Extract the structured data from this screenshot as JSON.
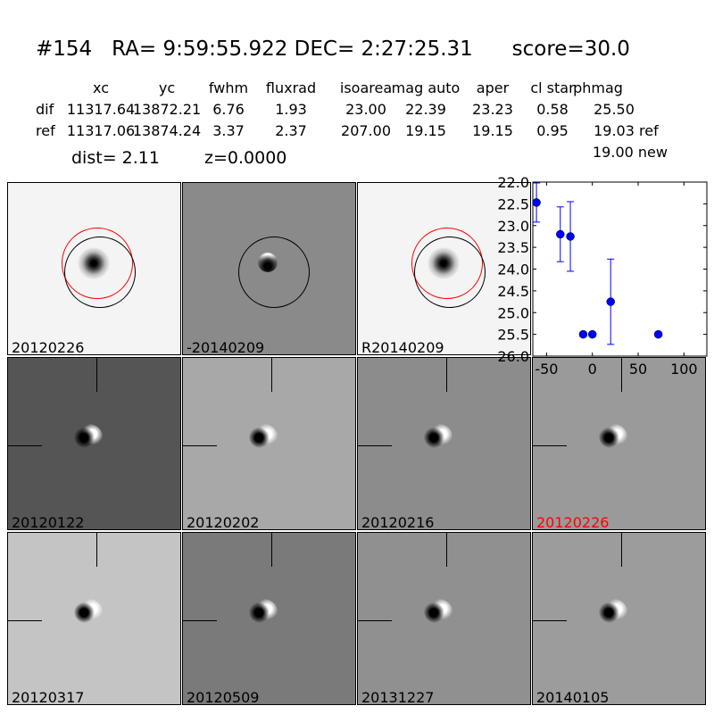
{
  "title": "#154   RA= 9:59:55.922 DEC= 2:27:25.31      score=30.0",
  "table": {
    "headers": [
      "xc",
      "yc",
      "fwhm",
      "fluxrad",
      "isoarea",
      "mag auto",
      "aper",
      "cl star",
      "phmag"
    ],
    "rows": [
      {
        "label": "dif",
        "values": [
          "11317.64",
          "13872.21",
          "6.76",
          "1.93",
          "23.00",
          "22.39",
          "23.23",
          "0.58",
          "25.50"
        ],
        "suffix": ""
      },
      {
        "label": "ref",
        "values": [
          "11317.06",
          "13874.24",
          "3.37",
          "2.37",
          "207.00",
          "19.15",
          "19.15",
          "0.95",
          "19.03"
        ],
        "suffix": "ref"
      }
    ],
    "new_phmag": "19.00 new"
  },
  "dist": "dist=  2.11",
  "z": "z=0.0000",
  "top_stamps": [
    {
      "label": "20120226",
      "bg": "#f4f4f4",
      "circles": [
        "red",
        "black"
      ]
    },
    {
      "label": "-20140209",
      "bg": "#8a8a8a",
      "circles": [
        "black"
      ]
    },
    {
      "label": "R20140209",
      "bg": "#f4f4f4",
      "circles": [
        "red",
        "black"
      ]
    }
  ],
  "stamps": [
    {
      "label": "20120122",
      "bg": "#555555",
      "color": "#000000"
    },
    {
      "label": "20120202",
      "bg": "#a8a8a8",
      "color": "#000000"
    },
    {
      "label": "20120216",
      "bg": "#8c8c8c",
      "color": "#000000"
    },
    {
      "label": "20120226",
      "bg": "#9a9a9a",
      "color": "#ff0000"
    },
    {
      "label": "20120317",
      "bg": "#c4c4c4",
      "color": "#000000"
    },
    {
      "label": "20120509",
      "bg": "#7a7a7a",
      "color": "#000000"
    },
    {
      "label": "20131227",
      "bg": "#909090",
      "color": "#000000"
    },
    {
      "label": "20140105",
      "bg": "#9c9c9c",
      "color": "#000000"
    }
  ],
  "chart_data": {
    "type": "scatter",
    "xlim": [
      -65,
      125
    ],
    "ylim": [
      26.0,
      22.0
    ],
    "y_inverted": true,
    "xticks": [
      "-50",
      "0",
      "50",
      "100"
    ],
    "yticks": [
      "22.0",
      "22.5",
      "23.0",
      "23.5",
      "24.0",
      "24.5",
      "25.0",
      "25.5",
      "26.0"
    ],
    "color": "#0000ff",
    "points": [
      {
        "x": -61,
        "y": 22.47,
        "err": 0.45
      },
      {
        "x": -35,
        "y": 23.2,
        "err": 0.63
      },
      {
        "x": -24,
        "y": 23.25,
        "err": 0.8
      },
      {
        "x": -10,
        "y": 25.5,
        "err": 0.05
      },
      {
        "x": 0,
        "y": 25.5,
        "err": 0.05
      },
      {
        "x": 20,
        "y": 24.75,
        "err": 0.98
      },
      {
        "x": 72,
        "y": 25.5,
        "err": 0.05
      }
    ]
  }
}
